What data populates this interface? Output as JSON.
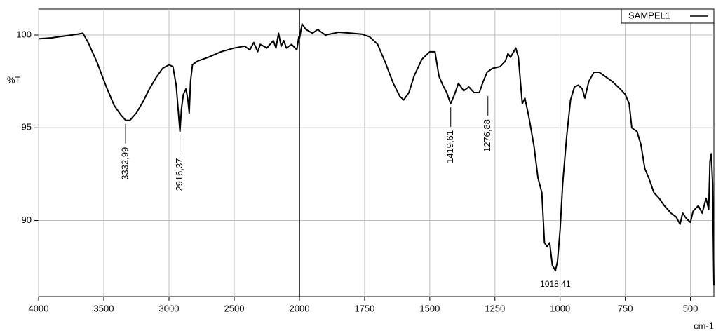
{
  "chart_data": {
    "type": "line",
    "ylabel": "%T",
    "xlabel": "cm-1",
    "xlim": [
      4000,
      410
    ],
    "x_scale_break": 2000,
    "ylim": [
      85.9,
      101.4
    ],
    "xticks": [
      4000,
      3500,
      3000,
      2500,
      2000,
      1750,
      1500,
      1250,
      1000,
      750,
      500
    ],
    "yticks": [
      90,
      95,
      100
    ],
    "grid": true,
    "legend": "upper right",
    "series": [
      {
        "name": "SAMPEL1",
        "color": "#000000",
        "x": [
          4000,
          3900,
          3800,
          3700,
          3660,
          3620,
          3550,
          3480,
          3420,
          3370,
          3332,
          3300,
          3250,
          3200,
          3150,
          3100,
          3050,
          3000,
          2970,
          2945,
          2930,
          2916,
          2905,
          2890,
          2870,
          2855,
          2845,
          2835,
          2820,
          2780,
          2700,
          2600,
          2500,
          2420,
          2380,
          2350,
          2320,
          2300,
          2250,
          2200,
          2180,
          2160,
          2140,
          2120,
          2100,
          2060,
          2020,
          2005,
          2000,
          1990,
          1975,
          1950,
          1930,
          1900,
          1850,
          1800,
          1760,
          1730,
          1700,
          1670,
          1640,
          1615,
          1600,
          1580,
          1560,
          1530,
          1500,
          1480,
          1465,
          1450,
          1435,
          1420,
          1405,
          1390,
          1370,
          1350,
          1330,
          1310,
          1295,
          1280,
          1260,
          1230,
          1210,
          1200,
          1190,
          1170,
          1160,
          1145,
          1135,
          1120,
          1100,
          1085,
          1070,
          1060,
          1050,
          1040,
          1030,
          1018,
          1010,
          1000,
          990,
          975,
          960,
          945,
          930,
          915,
          905,
          890,
          870,
          850,
          830,
          800,
          770,
          750,
          735,
          725,
          705,
          690,
          675,
          660,
          640,
          620,
          600,
          575,
          555,
          540,
          530,
          515,
          500,
          490,
          470,
          455,
          440,
          430,
          425,
          420,
          415,
          410
        ],
        "values": [
          99.8,
          99.85,
          99.95,
          100.05,
          100.1,
          99.6,
          98.5,
          97.2,
          96.2,
          95.7,
          95.4,
          95.4,
          95.8,
          96.4,
          97.1,
          97.7,
          98.2,
          98.4,
          98.3,
          97.3,
          96.0,
          94.8,
          96.0,
          96.8,
          97.1,
          96.5,
          95.8,
          97.5,
          98.4,
          98.6,
          98.8,
          99.1,
          99.3,
          99.4,
          99.2,
          99.6,
          99.1,
          99.5,
          99.3,
          99.7,
          99.3,
          100.1,
          99.4,
          99.7,
          99.3,
          99.5,
          99.2,
          99.9,
          99.8,
          100.6,
          100.3,
          100.1,
          100.3,
          100.0,
          100.15,
          100.1,
          100.05,
          99.9,
          99.5,
          98.5,
          97.4,
          96.7,
          96.5,
          96.9,
          97.8,
          98.7,
          99.1,
          99.1,
          97.8,
          97.3,
          96.9,
          96.3,
          96.8,
          97.4,
          97.0,
          97.2,
          96.9,
          96.9,
          97.5,
          98.0,
          98.2,
          98.3,
          98.6,
          99.0,
          98.8,
          99.3,
          98.8,
          96.3,
          96.6,
          95.6,
          94.0,
          92.3,
          91.5,
          88.8,
          88.6,
          88.8,
          87.6,
          87.3,
          87.8,
          89.5,
          92.0,
          94.5,
          96.5,
          97.2,
          97.3,
          97.1,
          96.6,
          97.5,
          98.0,
          98.0,
          97.8,
          97.5,
          97.1,
          96.8,
          96.3,
          95.0,
          94.8,
          94.1,
          92.8,
          92.3,
          91.5,
          91.2,
          90.8,
          90.4,
          90.2,
          89.8,
          90.4,
          90.1,
          89.9,
          90.5,
          90.8,
          90.4,
          91.2,
          90.6,
          93.2,
          93.6,
          92.0,
          86.5
        ]
      }
    ],
    "annotations": [
      {
        "text": "3332,99",
        "x": 3332.99,
        "y": 95.4,
        "rotated": true
      },
      {
        "text": "2916,37",
        "x": 2916.37,
        "y": 94.8,
        "rotated": true
      },
      {
        "text": "1419,61",
        "x": 1419.61,
        "y": 96.3,
        "rotated": true
      },
      {
        "text": "1276,88",
        "x": 1276.88,
        "y": 96.9,
        "rotated": true
      },
      {
        "text": "1018,41",
        "x": 1018.41,
        "y": 87.3,
        "rotated": false
      }
    ]
  }
}
